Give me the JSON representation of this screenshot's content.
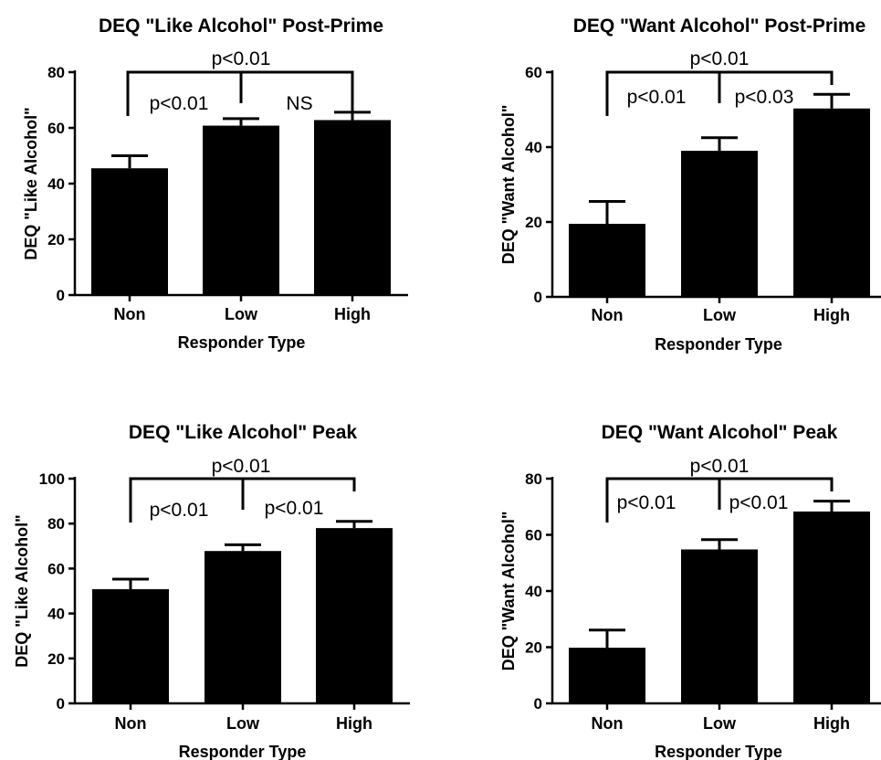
{
  "chart_data": [
    {
      "type": "bar",
      "title": "DEQ \"Like Alcohol\" Post-Prime",
      "xlabel": "Responder Type",
      "ylabel": "DEQ \"Like Alcohol\"",
      "categories": [
        "Non",
        "Low",
        "High"
      ],
      "values": [
        45.5,
        60.8,
        62.8
      ],
      "errors": [
        4.5,
        2.5,
        2.8
      ],
      "ylim": [
        0,
        80
      ],
      "yticks": [
        0,
        20,
        40,
        60,
        80
      ],
      "color": "#000000",
      "comparisons": [
        {
          "from": "Non",
          "to": "Low",
          "label": "p<0.01"
        },
        {
          "from": "Low",
          "to": "High",
          "label": "NS"
        },
        {
          "from": "Non",
          "to": "High",
          "label": "p<0.01"
        }
      ]
    },
    {
      "type": "bar",
      "title": "DEQ \"Want Alcohol\" Post-Prime",
      "xlabel": "Responder Type",
      "ylabel": "DEQ \"Want Alcohol\"",
      "categories": [
        "Non",
        "Low",
        "High"
      ],
      "values": [
        19.5,
        39,
        50.3
      ],
      "errors": [
        6,
        3.5,
        3.8
      ],
      "ylim": [
        0,
        60
      ],
      "yticks": [
        0,
        20,
        40,
        60
      ],
      "color": "#000000",
      "comparisons": [
        {
          "from": "Non",
          "to": "Low",
          "label": "p<0.01"
        },
        {
          "from": "Low",
          "to": "High",
          "label": "p<0.03"
        },
        {
          "from": "Non",
          "to": "High",
          "label": "p<0.01"
        }
      ]
    },
    {
      "type": "bar",
      "title": "DEQ \"Like Alcohol\" Peak",
      "xlabel": "Responder Type",
      "ylabel": "DEQ \"Like Alcohol\"",
      "categories": [
        "Non",
        "Low",
        "High"
      ],
      "values": [
        50.8,
        67.8,
        78
      ],
      "errors": [
        4.5,
        2.8,
        3
      ],
      "ylim": [
        0,
        100
      ],
      "yticks": [
        0,
        20,
        40,
        60,
        80,
        100
      ],
      "color": "#000000",
      "comparisons": [
        {
          "from": "Non",
          "to": "Low",
          "label": "p<0.01"
        },
        {
          "from": "Low",
          "to": "High",
          "label": "p<0.01"
        },
        {
          "from": "Non",
          "to": "High",
          "label": "p<0.01"
        }
      ]
    },
    {
      "type": "bar",
      "title": "DEQ \"Want Alcohol\" Peak",
      "xlabel": "Responder Type",
      "ylabel": "DEQ \"Want Alcohol\"",
      "categories": [
        "Non",
        "Low",
        "High"
      ],
      "values": [
        19.8,
        54.8,
        68.3
      ],
      "errors": [
        6.3,
        3.5,
        3.7
      ],
      "ylim": [
        0,
        80
      ],
      "yticks": [
        0,
        20,
        40,
        60,
        80
      ],
      "color": "#000000",
      "comparisons": [
        {
          "from": "Non",
          "to": "Low",
          "label": "p<0.01"
        },
        {
          "from": "Low",
          "to": "High",
          "label": "p<0.01"
        },
        {
          "from": "Non",
          "to": "High",
          "label": "p<0.01"
        }
      ]
    }
  ]
}
